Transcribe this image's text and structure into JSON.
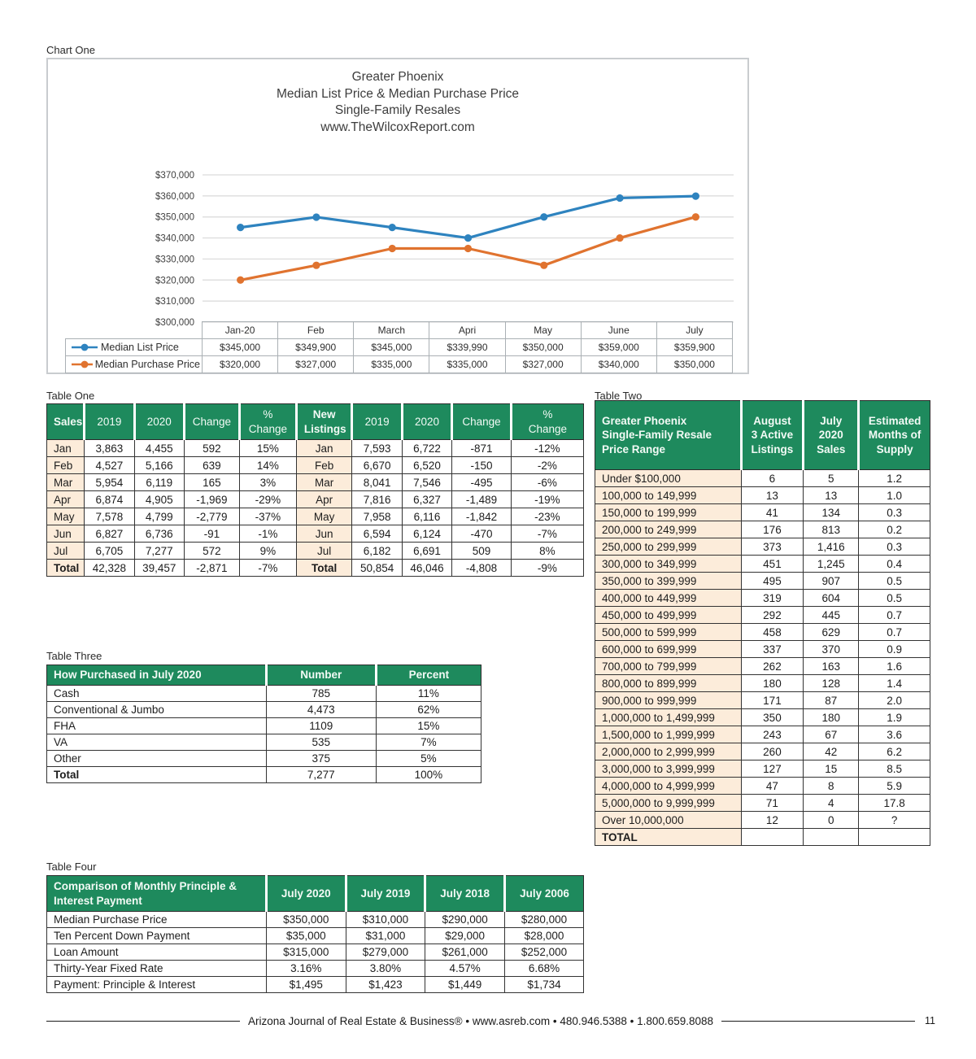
{
  "chart_one": {
    "label": "Chart One",
    "title_lines": [
      "Greater Phoenix",
      "Median List Price & Median Purchase Price",
      "Single-Family Resales",
      "www.TheWilcoxReport.com"
    ]
  },
  "chart_data": {
    "type": "line",
    "title": "Greater Phoenix Median List Price & Median Purchase Price Single-Family Resales www.TheWilcoxReport.com",
    "categories": [
      "Jan-20",
      "Feb",
      "March",
      "Apri",
      "May",
      "June",
      "July"
    ],
    "series": [
      {
        "name": "Median List Price",
        "color": "#2E83BF",
        "values": [
          345000,
          349900,
          345000,
          339990,
          350000,
          359000,
          359900
        ]
      },
      {
        "name": "Median Purchase Price",
        "color": "#E0732F",
        "values": [
          320000,
          327000,
          335000,
          335000,
          327000,
          340000,
          350000
        ]
      }
    ],
    "xlabel": "",
    "ylabel": "",
    "ylim": [
      300000,
      370000
    ],
    "ytick_step": 10000,
    "currency_prefix": "$",
    "grid": true,
    "legend_position": "table-left"
  },
  "table_one": {
    "label": "Table One",
    "header": [
      "Sales",
      "2019",
      "2020",
      "Change",
      "%\nChange",
      "New\nListings",
      "2019",
      "2020",
      "Change",
      "%\nChange"
    ],
    "rows": [
      [
        "Jan",
        "3,863",
        "4,455",
        "592",
        "15%",
        "Jan",
        "7,593",
        "6,722",
        "-871",
        "-12%"
      ],
      [
        "Feb",
        "4,527",
        "5,166",
        "639",
        "14%",
        "Feb",
        "6,670",
        "6,520",
        "-150",
        "-2%"
      ],
      [
        "Mar",
        "5,954",
        "6,119",
        "165",
        "3%",
        "Mar",
        "8,041",
        "7,546",
        "-495",
        "-6%"
      ],
      [
        "Apr",
        "6,874",
        "4,905",
        "-1,969",
        "-29%",
        "Apr",
        "7,816",
        "6,327",
        "-1,489",
        "-19%"
      ],
      [
        "May",
        "7,578",
        "4,799",
        "-2,779",
        "-37%",
        "May",
        "7,958",
        "6,116",
        "-1,842",
        "-23%"
      ],
      [
        "Jun",
        "6,827",
        "6,736",
        "-91",
        "-1%",
        "Jun",
        "6,594",
        "6,124",
        "-470",
        "-7%"
      ],
      [
        "Jul",
        "6,705",
        "7,277",
        "572",
        "9%",
        "Jul",
        "6,182",
        "6,691",
        "509",
        "8%"
      ],
      [
        "Total",
        "42,328",
        "39,457",
        "-2,871",
        "-7%",
        "Total",
        "50,854",
        "46,046",
        "-4,808",
        "-9%"
      ]
    ],
    "black_negative_cells": [
      [
        7,
        8
      ],
      [
        7,
        9
      ]
    ]
  },
  "table_two": {
    "label": "Table Two",
    "header": [
      "Greater Phoenix\nSingle-Family Resale\nPrice Range",
      "August\n3 Active\nListings",
      "July\n2020\nSales",
      "Estimated\nMonths of\nSupply"
    ],
    "rows": [
      [
        "Under $100,000",
        "6",
        "5",
        "1.2"
      ],
      [
        "100,000 to 149,999",
        "13",
        "13",
        "1.0"
      ],
      [
        "150,000 to 199,999",
        "41",
        "134",
        "0.3"
      ],
      [
        "200,000 to 249,999",
        "176",
        "813",
        "0.2"
      ],
      [
        "250,000 to 299,999",
        "373",
        "1,416",
        "0.3"
      ],
      [
        "300,000 to 349,999",
        "451",
        "1,245",
        "0.4"
      ],
      [
        "350,000 to 399,999",
        "495",
        "907",
        "0.5"
      ],
      [
        "400,000 to 449,999",
        "319",
        "604",
        "0.5"
      ],
      [
        "450,000 to 499,999",
        "292",
        "445",
        "0.7"
      ],
      [
        "500,000 to 599,999",
        "458",
        "629",
        "0.7"
      ],
      [
        "600,000 to 699,999",
        "337",
        "370",
        "0.9"
      ],
      [
        "700,000 to 799,999",
        "262",
        "163",
        "1.6"
      ],
      [
        "800,000 to 899,999",
        "180",
        "128",
        "1.4"
      ],
      [
        "900,000 to 999,999",
        "171",
        "87",
        "2.0"
      ],
      [
        "1,000,000 to 1,499,999",
        "350",
        "180",
        "1.9"
      ],
      [
        "1,500,000 to 1,999,999",
        "243",
        "67",
        "3.6"
      ],
      [
        "2,000,000 to 2,999,999",
        "260",
        "42",
        "6.2"
      ],
      [
        "3,000,000 to 3,999,999",
        "127",
        "15",
        "8.5"
      ],
      [
        "4,000,000 to 4,999,999",
        "47",
        "8",
        "5.9"
      ],
      [
        "5,000,000 to 9,999,999",
        "71",
        "4",
        "17.8"
      ],
      [
        "Over 10,000,000",
        "12",
        "0",
        "?"
      ],
      [
        "TOTAL",
        "",
        "",
        ""
      ]
    ]
  },
  "table_three": {
    "label": "Table Three",
    "header": [
      "How Purchased in July 2020",
      "Number",
      "Percent"
    ],
    "rows": [
      [
        "Cash",
        "785",
        "11%"
      ],
      [
        "Conventional & Jumbo",
        "4,473",
        "62%"
      ],
      [
        "FHA",
        "1109",
        "15%"
      ],
      [
        "VA",
        "535",
        "7%"
      ],
      [
        "Other",
        "375",
        "5%"
      ],
      [
        "Total",
        "7,277",
        "100%"
      ]
    ]
  },
  "table_four": {
    "label": "Table Four",
    "header": [
      "Comparison of Monthly Principle &\nInterest Payment",
      "July 2020",
      "July 2019",
      "July 2018",
      "July 2006"
    ],
    "rows": [
      [
        "Median Purchase Price",
        "$350,000",
        "$310,000",
        "$290,000",
        "$280,000"
      ],
      [
        "Ten Percent Down Payment",
        "$35,000",
        "$31,000",
        "$29,000",
        "$28,000"
      ],
      [
        "Loan Amount",
        "$315,000",
        "$279,000",
        "$261,000",
        "$252,000"
      ],
      [
        "Thirty-Year Fixed Rate",
        "3.16%",
        "3.80%",
        "4.57%",
        "6.68%"
      ],
      [
        "Payment: Principle & Interest",
        "$1,495",
        "$1,423",
        "$1,449",
        "$1,734"
      ]
    ]
  },
  "footer": {
    "text": "Arizona Journal of Real Estate & Business® • www.asreb.com • 480.946.5388 • 1.800.659.8088",
    "page_number": "11"
  }
}
